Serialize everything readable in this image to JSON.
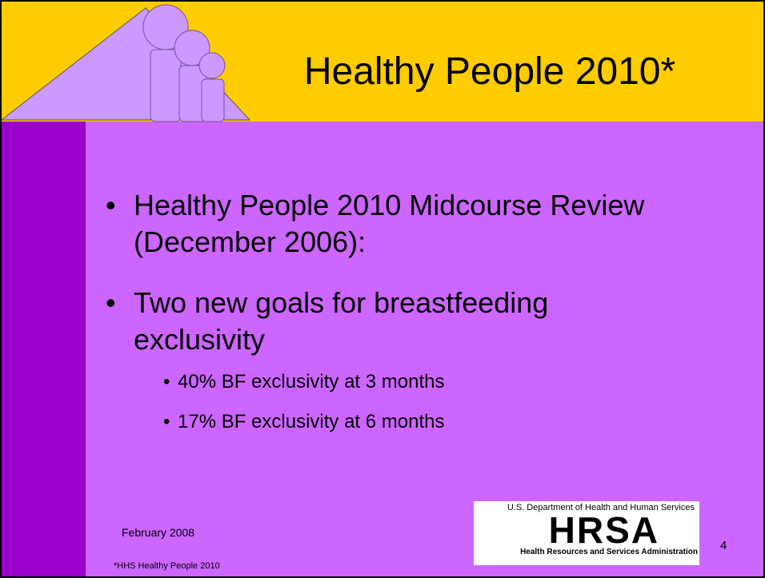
{
  "slide": {
    "title": "Healthy People 2010*",
    "bullets": [
      {
        "text": "Healthy People 2010 Midcourse Review (December 2006):",
        "sub": []
      },
      {
        "text": "Two new goals for breastfeeding exclusivity",
        "sub": [
          "40% BF exclusivity at 3 months",
          "17% BF exclusivity at 6 months"
        ]
      }
    ],
    "date": "February 2008",
    "footnote": "*HHS Healthy People 2010",
    "page_number": "4",
    "logo": {
      "top": "U.S. Department of Health and Human Services",
      "name": "HRSA",
      "bottom": "Health Resources and Services Administration"
    }
  }
}
